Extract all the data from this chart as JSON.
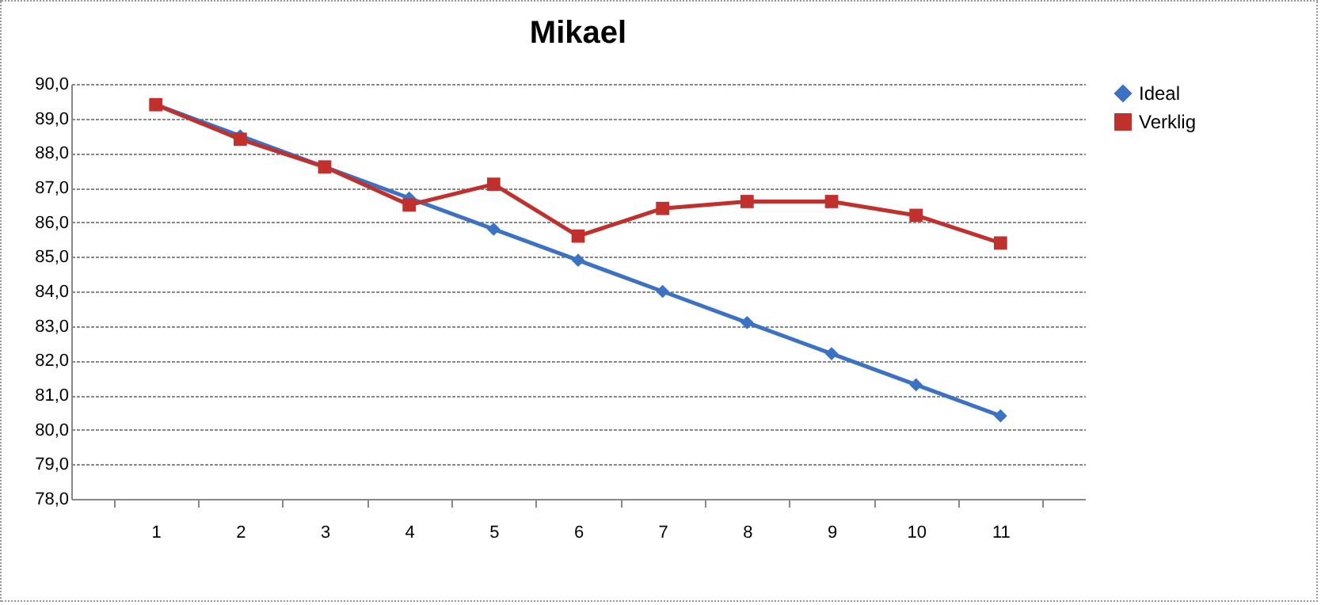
{
  "chart_data": {
    "type": "line",
    "title": "Mikael",
    "categories": [
      "1",
      "2",
      "3",
      "4",
      "5",
      "6",
      "7",
      "8",
      "9",
      "10",
      "11"
    ],
    "series": [
      {
        "name": "Ideal",
        "color": "#3c72c4",
        "marker": "diamond",
        "values": [
          89.4,
          88.5,
          87.6,
          86.7,
          85.8,
          84.9,
          84.0,
          83.1,
          82.2,
          81.3,
          80.4
        ]
      },
      {
        "name": "Verklig",
        "color": "#c0302c",
        "marker": "square",
        "values": [
          89.4,
          88.4,
          87.6,
          86.5,
          87.1,
          85.6,
          86.4,
          86.6,
          86.6,
          86.2,
          85.4
        ]
      }
    ],
    "ylim": [
      78,
      90
    ],
    "yticks": [
      {
        "value": 78,
        "label": "78,0"
      },
      {
        "value": 79,
        "label": "79,0"
      },
      {
        "value": 80,
        "label": "80,0"
      },
      {
        "value": 81,
        "label": "81,0"
      },
      {
        "value": 82,
        "label": "82,0"
      },
      {
        "value": 83,
        "label": "83,0"
      },
      {
        "value": 84,
        "label": "84,0"
      },
      {
        "value": 85,
        "label": "85,0"
      },
      {
        "value": 86,
        "label": "86,0"
      },
      {
        "value": 87,
        "label": "87,0"
      },
      {
        "value": 88,
        "label": "88,0"
      },
      {
        "value": 89,
        "label": "89,0"
      },
      {
        "value": 90,
        "label": "90,0"
      }
    ],
    "grid": "y",
    "legend": "right",
    "line_style": "solid"
  }
}
